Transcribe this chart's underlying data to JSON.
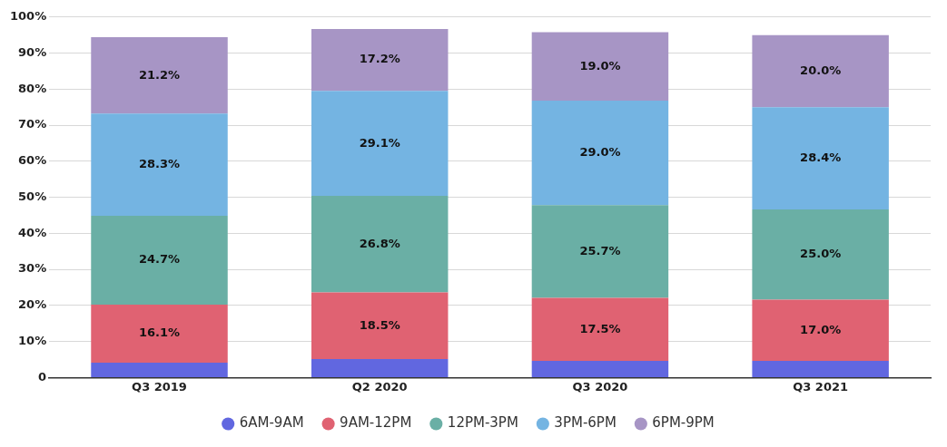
{
  "chart_data": {
    "type": "bar",
    "stacked": true,
    "categories": [
      "Q3 2019",
      "Q2 2020",
      "Q3 2020",
      "Q3 2021"
    ],
    "series": [
      {
        "name": "6AM-9AM",
        "color": "#6167e0",
        "values": [
          4.1,
          5.1,
          4.6,
          4.6
        ]
      },
      {
        "name": "9AM-12PM",
        "color": "#e06272",
        "values": [
          16.1,
          18.5,
          17.5,
          17.0
        ],
        "value_labels": [
          "16.1%",
          "18.5%",
          "17.5%",
          "17.0%"
        ]
      },
      {
        "name": "12PM-3PM",
        "color": "#6aafa5",
        "values": [
          24.7,
          26.8,
          25.7,
          25.0
        ],
        "value_labels": [
          "24.7%",
          "26.8%",
          "25.7%",
          "25.0%"
        ]
      },
      {
        "name": "3PM-6PM",
        "color": "#74b4e2",
        "values": [
          28.3,
          29.1,
          29.0,
          28.4
        ],
        "value_labels": [
          "28.3%",
          "29.1%",
          "29.0%",
          "28.4%"
        ]
      },
      {
        "name": "6PM-9PM",
        "color": "#a795c5",
        "values": [
          21.2,
          17.2,
          19.0,
          20.0
        ],
        "value_labels": [
          "21.2%",
          "17.2%",
          "19.0%",
          "20.0%"
        ]
      }
    ],
    "ylim": [
      0,
      100
    ],
    "yticks": [
      {
        "value": 0,
        "label": "0"
      },
      {
        "value": 10,
        "label": "10%"
      },
      {
        "value": 20,
        "label": "20%"
      },
      {
        "value": 30,
        "label": "30%"
      },
      {
        "value": 40,
        "label": "40%"
      },
      {
        "value": 50,
        "label": "50%"
      },
      {
        "value": 60,
        "label": "60%"
      },
      {
        "value": 70,
        "label": "70%"
      },
      {
        "value": 80,
        "label": "80%"
      },
      {
        "value": 90,
        "label": "90%"
      },
      {
        "value": 100,
        "label": "100%"
      }
    ],
    "grid": "y",
    "legend": "bottom"
  }
}
